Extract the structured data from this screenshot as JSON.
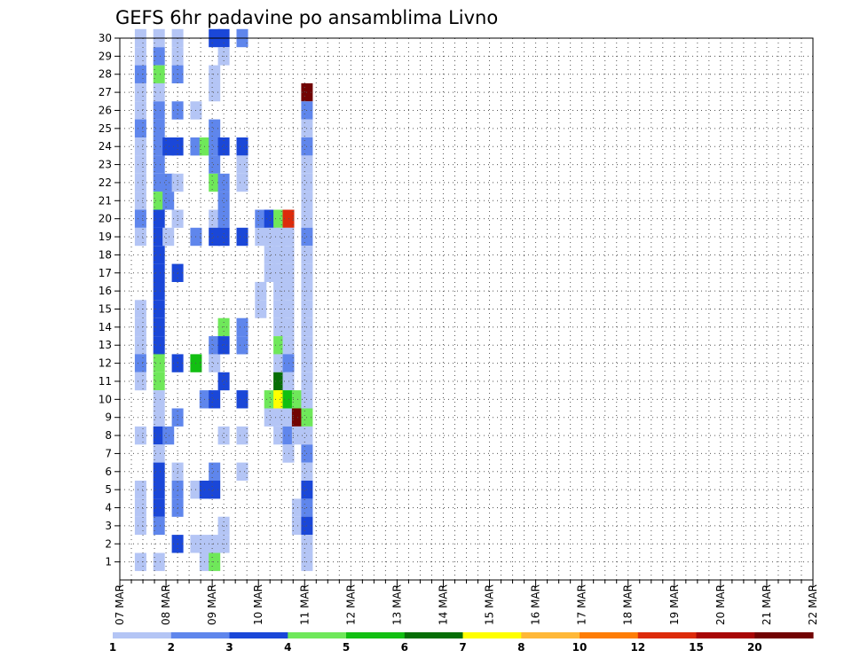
{
  "chart_data": {
    "type": "heatmap",
    "title": "GEFS 6hr padavine po ansamblima Livno",
    "y_categories": [
      "1",
      "2",
      "3",
      "4",
      "5",
      "6",
      "7",
      "8",
      "9",
      "10",
      "11",
      "12",
      "13",
      "14",
      "15",
      "16",
      "17",
      "18",
      "19",
      "20",
      "21",
      "22",
      "23",
      "24",
      "25",
      "26",
      "27",
      "28",
      "29",
      "30"
    ],
    "x_tick_labels": [
      "07 MAR",
      "08 MAR",
      "09 MAR",
      "10 MAR",
      "11 MAR",
      "12 MAR",
      "13 MAR",
      "14 MAR",
      "15 MAR",
      "16 MAR",
      "17 MAR",
      "18 MAR",
      "19 MAR",
      "20 MAR",
      "21 MAR",
      "22 MAR"
    ],
    "x_period": "6hr",
    "colorbar": {
      "ticks": [
        "1",
        "2",
        "3",
        "4",
        "5",
        "6",
        "7",
        "8",
        "10",
        "12",
        "15",
        "20"
      ],
      "colors": [
        "#b4c5f5",
        "#5f86ec",
        "#1a47d8",
        "#6fe85a",
        "#12bf12",
        "#066e06",
        "#ffff00",
        "#ffb838",
        "#fe7d05",
        "#dd2b0b",
        "#a80707",
        "#720303"
      ]
    },
    "cells": [
      [
        0.2,
        30,
        0
      ],
      [
        0.2,
        29,
        0
      ],
      [
        0.2,
        28,
        1
      ],
      [
        0.2,
        27,
        0
      ],
      [
        0.2,
        26,
        0
      ],
      [
        0.2,
        25,
        1
      ],
      [
        0.2,
        24,
        0
      ],
      [
        0.2,
        23,
        0
      ],
      [
        0.2,
        22,
        0
      ],
      [
        0.2,
        21,
        0
      ],
      [
        0.2,
        20,
        1
      ],
      [
        0.2,
        19,
        0
      ],
      [
        0.2,
        15,
        0
      ],
      [
        0.2,
        14,
        0
      ],
      [
        0.2,
        13,
        0
      ],
      [
        0.2,
        12,
        1
      ],
      [
        0.2,
        11,
        0
      ],
      [
        0.2,
        8,
        0
      ],
      [
        0.2,
        5,
        0
      ],
      [
        0.2,
        4,
        0
      ],
      [
        0.2,
        3,
        0
      ],
      [
        0.2,
        1,
        0
      ],
      [
        0.6,
        30,
        0
      ],
      [
        0.6,
        29,
        1
      ],
      [
        0.6,
        28,
        3
      ],
      [
        0.6,
        27,
        0
      ],
      [
        0.6,
        26,
        1
      ],
      [
        0.6,
        25,
        1
      ],
      [
        0.6,
        24,
        1
      ],
      [
        0.6,
        23,
        1
      ],
      [
        0.6,
        22,
        1
      ],
      [
        0.6,
        21,
        3
      ],
      [
        0.6,
        20,
        2
      ],
      [
        0.6,
        19,
        2
      ],
      [
        0.6,
        18,
        2
      ],
      [
        0.6,
        17,
        2
      ],
      [
        0.6,
        16,
        2
      ],
      [
        0.6,
        15,
        2
      ],
      [
        0.6,
        14,
        2
      ],
      [
        0.6,
        13,
        2
      ],
      [
        0.6,
        12,
        3
      ],
      [
        0.6,
        11,
        3
      ],
      [
        0.6,
        10,
        0
      ],
      [
        0.6,
        9,
        0
      ],
      [
        0.6,
        8,
        2
      ],
      [
        0.6,
        7,
        0
      ],
      [
        0.6,
        6,
        2
      ],
      [
        0.6,
        5,
        2
      ],
      [
        0.6,
        4,
        2
      ],
      [
        0.6,
        3,
        1
      ],
      [
        0.6,
        1,
        0
      ],
      [
        0.8,
        24,
        2
      ],
      [
        0.8,
        22,
        1
      ],
      [
        0.8,
        21,
        1
      ],
      [
        0.8,
        19,
        0
      ],
      [
        0.8,
        8,
        1
      ],
      [
        1.0,
        30,
        0
      ],
      [
        1.0,
        29,
        0
      ],
      [
        1.0,
        28,
        1
      ],
      [
        1.0,
        26,
        1
      ],
      [
        1.0,
        24,
        2
      ],
      [
        1.0,
        22,
        0
      ],
      [
        1.0,
        20,
        0
      ],
      [
        1.0,
        17,
        2
      ],
      [
        1.0,
        12,
        2
      ],
      [
        1.0,
        9,
        1
      ],
      [
        1.0,
        6,
        0
      ],
      [
        1.0,
        5,
        1
      ],
      [
        1.0,
        4,
        1
      ],
      [
        1.0,
        2,
        2
      ],
      [
        1.4,
        24,
        1
      ],
      [
        1.4,
        26,
        0
      ],
      [
        1.4,
        19,
        1
      ],
      [
        1.4,
        12,
        4
      ],
      [
        1.4,
        5,
        0
      ],
      [
        1.4,
        2,
        0
      ],
      [
        1.6,
        24,
        3
      ],
      [
        1.6,
        10,
        1
      ],
      [
        1.6,
        5,
        2
      ],
      [
        1.6,
        2,
        0
      ],
      [
        1.6,
        1,
        0
      ],
      [
        1.8,
        30,
        2
      ],
      [
        1.8,
        28,
        0
      ],
      [
        1.8,
        27,
        0
      ],
      [
        1.8,
        25,
        1
      ],
      [
        1.8,
        24,
        1
      ],
      [
        1.8,
        23,
        1
      ],
      [
        1.8,
        22,
        3
      ],
      [
        1.8,
        20,
        0
      ],
      [
        1.8,
        19,
        2
      ],
      [
        1.8,
        13,
        1
      ],
      [
        1.8,
        12,
        0
      ],
      [
        1.8,
        10,
        2
      ],
      [
        1.8,
        6,
        1
      ],
      [
        1.8,
        5,
        2
      ],
      [
        1.8,
        2,
        0
      ],
      [
        1.8,
        1,
        3
      ],
      [
        2.0,
        30,
        2
      ],
      [
        2.0,
        29,
        0
      ],
      [
        2.0,
        24,
        2
      ],
      [
        2.0,
        22,
        1
      ],
      [
        2.0,
        21,
        1
      ],
      [
        2.0,
        20,
        1
      ],
      [
        2.0,
        19,
        2
      ],
      [
        2.0,
        14,
        3
      ],
      [
        2.0,
        13,
        2
      ],
      [
        2.0,
        11,
        2
      ],
      [
        2.0,
        8,
        0
      ],
      [
        2.0,
        3,
        0
      ],
      [
        2.0,
        2,
        0
      ],
      [
        2.4,
        30,
        1
      ],
      [
        2.4,
        24,
        2
      ],
      [
        2.4,
        23,
        0
      ],
      [
        2.4,
        22,
        0
      ],
      [
        2.4,
        19,
        2
      ],
      [
        2.4,
        14,
        1
      ],
      [
        2.4,
        13,
        1
      ],
      [
        2.4,
        10,
        2
      ],
      [
        2.4,
        6,
        0
      ],
      [
        2.4,
        8,
        0
      ],
      [
        2.8,
        19,
        0
      ],
      [
        2.8,
        20,
        1
      ],
      [
        2.8,
        16,
        0
      ],
      [
        2.8,
        15,
        0
      ],
      [
        3.0,
        20,
        2
      ],
      [
        3.0,
        19,
        0
      ],
      [
        3.0,
        18,
        0
      ],
      [
        3.0,
        17,
        0
      ],
      [
        3.0,
        10,
        3
      ],
      [
        3.0,
        9,
        0
      ],
      [
        3.2,
        20,
        3
      ],
      [
        3.2,
        19,
        0
      ],
      [
        3.2,
        18,
        0
      ],
      [
        3.2,
        17,
        0
      ],
      [
        3.2,
        16,
        0
      ],
      [
        3.2,
        15,
        0
      ],
      [
        3.2,
        14,
        0
      ],
      [
        3.2,
        13,
        3
      ],
      [
        3.2,
        12,
        0
      ],
      [
        3.2,
        11,
        5
      ],
      [
        3.2,
        10,
        6
      ],
      [
        3.2,
        9,
        0
      ],
      [
        3.2,
        8,
        0
      ],
      [
        3.4,
        20,
        9
      ],
      [
        3.4,
        19,
        0
      ],
      [
        3.4,
        18,
        0
      ],
      [
        3.4,
        17,
        0
      ],
      [
        3.4,
        16,
        0
      ],
      [
        3.4,
        15,
        0
      ],
      [
        3.4,
        14,
        0
      ],
      [
        3.4,
        13,
        0
      ],
      [
        3.4,
        12,
        1
      ],
      [
        3.4,
        11,
        0
      ],
      [
        3.4,
        10,
        4
      ],
      [
        3.4,
        9,
        0
      ],
      [
        3.4,
        8,
        1
      ],
      [
        3.4,
        7,
        0
      ],
      [
        3.6,
        10,
        3
      ],
      [
        3.6,
        9,
        11
      ],
      [
        3.6,
        8,
        0
      ],
      [
        3.6,
        4,
        0
      ],
      [
        3.6,
        3,
        0
      ],
      [
        3.8,
        27,
        11
      ],
      [
        3.8,
        26,
        1
      ],
      [
        3.8,
        25,
        0
      ],
      [
        3.8,
        24,
        1
      ],
      [
        3.8,
        23,
        0
      ],
      [
        3.8,
        22,
        0
      ],
      [
        3.8,
        21,
        0
      ],
      [
        3.8,
        20,
        0
      ],
      [
        3.8,
        19,
        1
      ],
      [
        3.8,
        18,
        0
      ],
      [
        3.8,
        17,
        0
      ],
      [
        3.8,
        16,
        0
      ],
      [
        3.8,
        15,
        0
      ],
      [
        3.8,
        14,
        0
      ],
      [
        3.8,
        13,
        0
      ],
      [
        3.8,
        12,
        0
      ],
      [
        3.8,
        11,
        0
      ],
      [
        3.8,
        10,
        0
      ],
      [
        3.8,
        9,
        3
      ],
      [
        3.8,
        8,
        0
      ],
      [
        3.8,
        7,
        1
      ],
      [
        3.8,
        6,
        0
      ],
      [
        3.8,
        5,
        2
      ],
      [
        3.8,
        4,
        1
      ],
      [
        3.8,
        3,
        2
      ],
      [
        3.8,
        2,
        0
      ],
      [
        3.8,
        1,
        0
      ]
    ]
  }
}
